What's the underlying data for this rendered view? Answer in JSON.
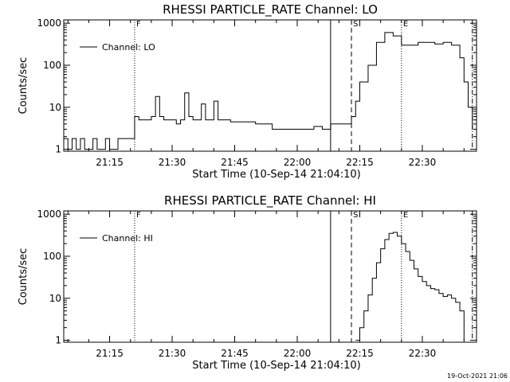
{
  "footer": {
    "timestamp": "19-Oct-2021 21:06"
  },
  "chart_data": [
    {
      "type": "line",
      "title": "RHESSI PARTICLE_RATE Channel: LO",
      "xlabel": "Start Time (10-Sep-14 21:04:10)",
      "ylabel": "Counts/sec",
      "yscale": "log",
      "xlim": [
        "21:04",
        "22:43"
      ],
      "ylim": [
        0.9,
        1200
      ],
      "xticks": [
        "21:15",
        "21:30",
        "21:45",
        "22:00",
        "22:15",
        "22:30"
      ],
      "yticks": [
        "1",
        "10",
        "100",
        "1000"
      ],
      "legend": {
        "label": "Channel: LO",
        "position": "top-left"
      },
      "markers": [
        {
          "label": "F",
          "time": "21:21",
          "style": "dotted"
        },
        {
          "label": "",
          "time": "22:08",
          "style": "solid"
        },
        {
          "label": "S",
          "time": "22:13",
          "style": "dashed"
        },
        {
          "label": "E",
          "time": "22:25",
          "style": "dotted"
        },
        {
          "label": "",
          "time": "22:42",
          "style": "dashdot"
        }
      ],
      "series": [
        {
          "x": [
            "21:04",
            "21:05",
            "21:06",
            "21:07",
            "21:08",
            "21:09",
            "21:10",
            "21:11",
            "21:12",
            "21:13",
            "21:14",
            "21:15",
            "21:16",
            "21:17",
            "21:18",
            "21:19",
            "21:20",
            "21:21",
            "21:22",
            "21:23",
            "21:24",
            "21:25",
            "21:26",
            "21:27",
            "21:28",
            "21:29",
            "21:30",
            "21:31",
            "21:32",
            "21:33",
            "21:34",
            "21:35",
            "21:36",
            "21:37",
            "21:38",
            "21:39",
            "21:40",
            "21:41",
            "21:42",
            "21:43",
            "21:44",
            "21:45",
            "21:48",
            "21:50",
            "21:52",
            "21:54",
            "21:56",
            "21:58",
            "22:00",
            "22:02",
            "22:04",
            "22:06",
            "22:08",
            "22:10",
            "22:12",
            "22:13",
            "22:14",
            "22:15",
            "22:17",
            "22:19",
            "22:21",
            "22:23",
            "22:25",
            "22:27",
            "22:29",
            "22:31",
            "22:33",
            "22:35",
            "22:37",
            "22:39",
            "22:40",
            "22:41",
            "22:42"
          ],
          "y": [
            1.8,
            1,
            1.8,
            1,
            1.8,
            1,
            1,
            1.8,
            1,
            1,
            1.8,
            1,
            1,
            1.8,
            1.8,
            1.8,
            1.8,
            6,
            5,
            5,
            5,
            6,
            18,
            6,
            5,
            5,
            5,
            4,
            5,
            22,
            6,
            5,
            5,
            12,
            5,
            5,
            14,
            5,
            5,
            5,
            4.5,
            4.5,
            4.5,
            4,
            4,
            3,
            3,
            3,
            3,
            3,
            3.5,
            3,
            4,
            4,
            4,
            6,
            14,
            40,
            100,
            350,
            600,
            500,
            300,
            300,
            350,
            350,
            320,
            350,
            300,
            150,
            40,
            10,
            3
          ]
        }
      ]
    },
    {
      "type": "line",
      "title": "RHESSI PARTICLE_RATE Channel: HI",
      "xlabel": "Start Time (10-Sep-14 21:04:10)",
      "ylabel": "Counts/sec",
      "yscale": "log",
      "xlim": [
        "21:04",
        "22:43"
      ],
      "ylim": [
        0.9,
        1200
      ],
      "xticks": [
        "21:15",
        "21:30",
        "21:45",
        "22:00",
        "22:15",
        "22:30"
      ],
      "yticks": [
        "1",
        "10",
        "100",
        "1000"
      ],
      "legend": {
        "label": "Channel: HI",
        "position": "top-left"
      },
      "markers": [
        {
          "label": "F",
          "time": "21:21",
          "style": "dotted"
        },
        {
          "label": "",
          "time": "22:08",
          "style": "solid"
        },
        {
          "label": "S",
          "time": "22:13",
          "style": "dashed"
        },
        {
          "label": "E",
          "time": "22:25",
          "style": "dotted"
        },
        {
          "label": "",
          "time": "22:42",
          "style": "dashdot"
        }
      ],
      "series": [
        {
          "x": [
            "22:14",
            "22:15",
            "22:16",
            "22:17",
            "22:18",
            "22:19",
            "22:20",
            "22:21",
            "22:22",
            "22:23",
            "22:24",
            "22:25",
            "22:26",
            "22:27",
            "22:28",
            "22:29",
            "22:30",
            "22:31",
            "22:32",
            "22:33",
            "22:34",
            "22:35",
            "22:36",
            "22:37",
            "22:38",
            "22:39",
            "22:40"
          ],
          "y": [
            1,
            2,
            5,
            12,
            30,
            70,
            150,
            250,
            350,
            370,
            300,
            200,
            130,
            80,
            50,
            33,
            25,
            20,
            17,
            16,
            13,
            11,
            12,
            10,
            8,
            5,
            1
          ]
        }
      ]
    }
  ]
}
